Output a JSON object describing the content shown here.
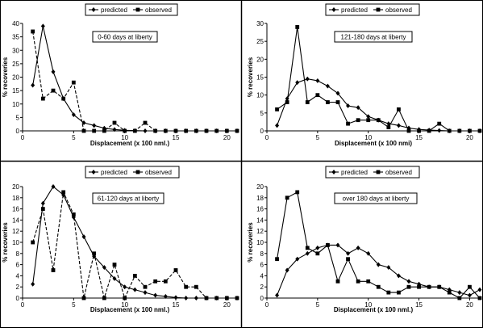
{
  "chart_data": [
    {
      "type": "line",
      "annotation": "0-60 days at liberty",
      "xlabel": "Displacement (x 100 nml.)",
      "ylabel": "% recoveries",
      "xlim": [
        0,
        21
      ],
      "ylim": [
        0,
        40
      ],
      "xticks": [
        0,
        5,
        10,
        15,
        20
      ],
      "yticks": [
        0,
        5,
        10,
        15,
        20,
        25,
        30,
        35,
        40
      ],
      "legend_position": "top",
      "series": [
        {
          "name": "predicted",
          "marker": "diamond",
          "dash": "solid",
          "x": [
            1,
            2,
            3,
            4,
            5,
            6,
            7,
            8,
            9,
            10,
            11,
            12,
            13,
            14,
            15,
            16,
            17,
            18,
            19,
            20,
            21
          ],
          "y": [
            17,
            39,
            22,
            12,
            6,
            3,
            2,
            1,
            0.5,
            0.2,
            0.1,
            0,
            0,
            0,
            0,
            0,
            0,
            0,
            0,
            0,
            0
          ]
        },
        {
          "name": "observed",
          "marker": "square",
          "dash": "dashed",
          "x": [
            1,
            2,
            3,
            4,
            5,
            6,
            7,
            8,
            9,
            10,
            11,
            12,
            13,
            14,
            15,
            16,
            17,
            18,
            19,
            20,
            21
          ],
          "y": [
            37,
            12,
            15,
            12,
            18,
            0,
            0,
            0,
            3,
            0,
            0,
            3,
            0,
            0,
            0,
            0,
            0,
            0,
            0,
            0,
            0
          ]
        }
      ]
    },
    {
      "type": "line",
      "annotation": "121-180 days at liberty",
      "xlabel": "Displacement (x 100 nmi)",
      "ylabel": "% recoveries",
      "xlim": [
        0,
        21
      ],
      "ylim": [
        0,
        30
      ],
      "xticks": [
        0,
        5,
        10,
        15,
        20
      ],
      "yticks": [
        0,
        5,
        10,
        15,
        20,
        25,
        30
      ],
      "legend_position": "top",
      "series": [
        {
          "name": "predicted",
          "marker": "diamond",
          "dash": "solid",
          "x": [
            1,
            2,
            3,
            4,
            5,
            6,
            7,
            8,
            9,
            10,
            11,
            12,
            13,
            14,
            15,
            16,
            17,
            18,
            19,
            20,
            21
          ],
          "y": [
            1.5,
            9,
            13.5,
            14.5,
            14,
            12.5,
            10.5,
            7,
            6.5,
            4,
            3,
            2,
            1.5,
            0.8,
            0.4,
            0.2,
            0.1,
            0,
            0,
            0,
            0
          ]
        },
        {
          "name": "observed",
          "marker": "square",
          "dash": "solid",
          "x": [
            1,
            2,
            3,
            4,
            5,
            6,
            7,
            8,
            9,
            10,
            11,
            12,
            13,
            14,
            15,
            16,
            17,
            18,
            19,
            20,
            21
          ],
          "y": [
            6,
            8,
            29,
            8,
            10,
            8,
            8,
            2,
            3,
            3,
            3,
            1,
            6,
            0,
            0,
            0,
            2,
            0,
            0,
            0,
            0
          ]
        }
      ]
    },
    {
      "type": "line",
      "annotation": "61-120 days at liberty",
      "xlabel": "Displacement (x 100 nml.)",
      "ylabel": "% recoveries",
      "xlim": [
        0,
        21
      ],
      "ylim": [
        0,
        20
      ],
      "xticks": [
        0,
        5,
        10,
        15,
        20
      ],
      "yticks": [
        0,
        2,
        4,
        6,
        8,
        10,
        12,
        14,
        16,
        18,
        20
      ],
      "legend_position": "top",
      "series": [
        {
          "name": "predicted",
          "marker": "diamond",
          "dash": "solid",
          "x": [
            1,
            2,
            3,
            4,
            5,
            6,
            7,
            8,
            9,
            10,
            11,
            12,
            13,
            14,
            15,
            16,
            17,
            18,
            19,
            20,
            21
          ],
          "y": [
            2.5,
            17,
            20,
            18.5,
            14.5,
            11,
            7.5,
            5.5,
            3.5,
            2,
            1.5,
            1,
            0.5,
            0.3,
            0.1,
            0,
            0,
            0,
            0,
            0,
            0
          ]
        },
        {
          "name": "observed",
          "marker": "square",
          "dash": "dashed",
          "x": [
            1,
            2,
            3,
            4,
            5,
            6,
            7,
            8,
            9,
            10,
            11,
            12,
            13,
            14,
            15,
            16,
            17,
            18,
            19,
            20,
            21
          ],
          "y": [
            10,
            16,
            5,
            19,
            15,
            0,
            8,
            0,
            6,
            0,
            4,
            2,
            3,
            3,
            5,
            2,
            2,
            0,
            0,
            0,
            0
          ]
        }
      ]
    },
    {
      "type": "line",
      "annotation": "over 180 days at liberty",
      "xlabel": "Displacement (x 100 nml.)",
      "ylabel": "% recoveries",
      "xlim": [
        0,
        21
      ],
      "ylim": [
        0,
        20
      ],
      "xticks": [
        0,
        5,
        10,
        15,
        20
      ],
      "yticks": [
        0,
        2,
        4,
        6,
        8,
        10,
        12,
        14,
        16,
        18,
        20
      ],
      "legend_position": "top",
      "series": [
        {
          "name": "predicted",
          "marker": "diamond",
          "dash": "solid",
          "x": [
            1,
            2,
            3,
            4,
            5,
            6,
            7,
            8,
            9,
            10,
            11,
            12,
            13,
            14,
            15,
            16,
            17,
            18,
            19,
            20,
            21
          ],
          "y": [
            0.5,
            5,
            7,
            8,
            9,
            9.5,
            9.5,
            8,
            9,
            8,
            6,
            5.5,
            4,
            3,
            2.5,
            2,
            2,
            1.5,
            1,
            0.5,
            1.5
          ]
        },
        {
          "name": "observed",
          "marker": "square",
          "dash": "solid",
          "x": [
            1,
            2,
            3,
            4,
            5,
            6,
            7,
            8,
            9,
            10,
            11,
            12,
            13,
            14,
            15,
            16,
            17,
            18,
            19,
            20,
            21
          ],
          "y": [
            7,
            18,
            19,
            9,
            8,
            9.5,
            3,
            7,
            3,
            3,
            2,
            1,
            1,
            2,
            2,
            2,
            2,
            1,
            0,
            2,
            0
          ]
        }
      ]
    }
  ]
}
